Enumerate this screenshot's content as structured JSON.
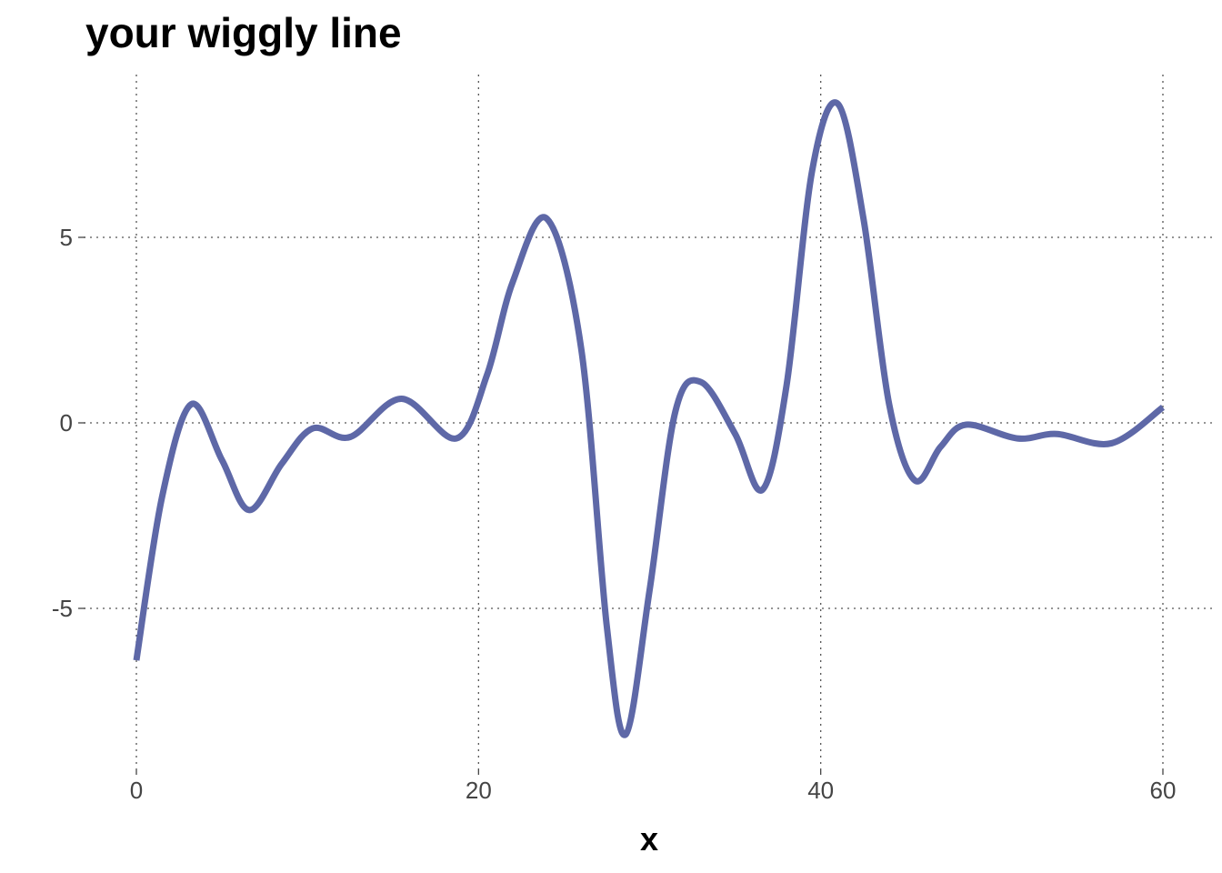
{
  "chart_data": {
    "type": "line",
    "title": "your wiggly line",
    "xlabel": "x",
    "ylabel": "",
    "xlim": [
      0,
      60
    ],
    "ylim": [
      -8.9,
      9.2
    ],
    "x_ticks": [
      0,
      20,
      40,
      60
    ],
    "x_tick_labels": [
      "0",
      "20",
      "40",
      "60"
    ],
    "y_ticks": [
      -5,
      0,
      5
    ],
    "y_tick_labels": [
      "-5",
      "0",
      "5"
    ],
    "grid": true,
    "legend": "none",
    "line_color": "#5e68a7",
    "series": [
      {
        "x": [
          0,
          1.5,
          3.2,
          5,
          6.6,
          8.5,
          10.3,
          12.5,
          15.5,
          18.7,
          20.5,
          22,
          24,
          26,
          27.5,
          28.6,
          30,
          31.5,
          33,
          35,
          36.6,
          38,
          39.5,
          41,
          42.5,
          44,
          45.5,
          47,
          48.5,
          51.5,
          53.8,
          57,
          60
        ],
        "y": [
          -6.4,
          -2.0,
          0.5,
          -1.0,
          -2.35,
          -1.1,
          -0.15,
          -0.38,
          0.65,
          -0.42,
          1.3,
          3.8,
          5.5,
          2.0,
          -5.5,
          -8.4,
          -4.5,
          0.3,
          1.1,
          -0.3,
          -1.8,
          1.0,
          6.8,
          8.6,
          5.5,
          0.5,
          -1.55,
          -0.65,
          -0.05,
          -0.42,
          -0.3,
          -0.55,
          0.42
        ]
      }
    ]
  }
}
